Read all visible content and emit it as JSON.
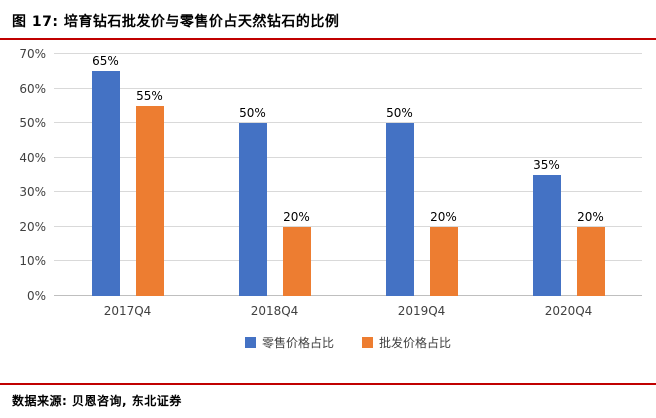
{
  "header": {
    "title": "图 17: 培育钻石批发价与零售价占天然钻石的比例"
  },
  "footer": {
    "source": "数据来源: 贝恩咨询, 东北证券"
  },
  "colors": {
    "rule": "#C00000",
    "gridline": "#D9D9D9",
    "series_blue": "#4472C4",
    "series_orange": "#ED7D31"
  },
  "chart_data": {
    "type": "bar",
    "title": "培育钻石批发价与零售价占天然钻石的比例",
    "categories": [
      "2017Q4",
      "2018Q4",
      "2019Q4",
      "2020Q4"
    ],
    "series": [
      {
        "name": "零售价格占比",
        "color": "#4472C4",
        "values": [
          65,
          50,
          50,
          35
        ]
      },
      {
        "name": "批发价格占比",
        "color": "#ED7D31",
        "values": [
          55,
          20,
          20,
          20
        ]
      }
    ],
    "ylim": [
      0,
      70
    ],
    "ytick_step": 10,
    "ytick_suffix": "%",
    "data_label_suffix": "%",
    "grid": true,
    "legend_position": "bottom",
    "xlabel": "",
    "ylabel": ""
  }
}
